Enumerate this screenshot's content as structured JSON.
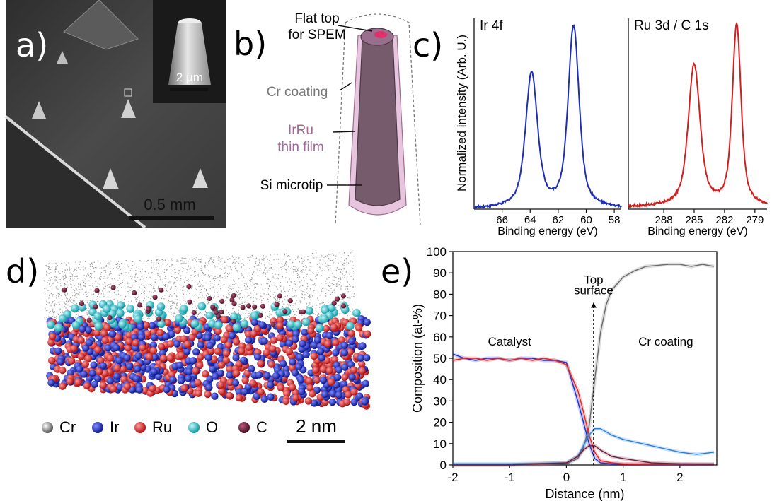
{
  "panels": {
    "a": {
      "letter": "a)",
      "scale_inset": "2 µm",
      "scale_main": "0.5 mm"
    },
    "b": {
      "letter": "b)",
      "labels": {
        "flat_top": "Flat top",
        "for_spem": "for SPEM",
        "cr_coating": "Cr coating",
        "irru": "IrRu",
        "thin_film": "thin film",
        "si_microtip": "Si microtip"
      },
      "colors": {
        "irru_label": "#a06b96",
        "tip_fill": "#765b6d",
        "film": "#e7c5de"
      }
    },
    "c": {
      "letter": "c)",
      "ylabel": "Normalized intensity (Arb. U.)",
      "colors": {
        "ir": "#1f2fb4",
        "ru": "#d21f1f"
      }
    },
    "d": {
      "letter": "d)",
      "scale": "2 nm",
      "legend": [
        {
          "label": "Cr",
          "color": "#777777"
        },
        {
          "label": "Ir",
          "color": "#1d2cc9"
        },
        {
          "label": "Ru",
          "color": "#e02525"
        },
        {
          "label": "O",
          "color": "#25c3cf"
        },
        {
          "label": "C",
          "color": "#6d1f3a"
        }
      ]
    },
    "e": {
      "letter": "e)"
    }
  },
  "chart_data": [
    {
      "type": "line",
      "title": "Ir 4f",
      "xlabel": "Binding energy (eV)",
      "ylabel": "Normalized intensity (Arb. U.)",
      "xlim": [
        68,
        57.5
      ],
      "ylim": [
        0,
        1.05
      ],
      "xticks": [
        "66",
        "64",
        "62",
        "60",
        "58"
      ],
      "xtick_values": [
        66,
        64,
        62,
        60,
        58
      ],
      "series": [
        {
          "color": "#1f2fb4",
          "peaks": [
            {
              "x": 63.9,
              "y": 0.74,
              "w": 0.55
            },
            {
              "x": 60.9,
              "y": 1.0,
              "w": 0.5
            }
          ],
          "baseline": 0.0
        }
      ]
    },
    {
      "type": "line",
      "title": "Ru 3d / C 1s",
      "xlabel": "Binding energy (eV)",
      "ylabel": "",
      "xlim": [
        291.5,
        277.8
      ],
      "ylim": [
        0,
        1.05
      ],
      "xticks": [
        "288",
        "285",
        "282",
        "279"
      ],
      "xtick_values": [
        288,
        285,
        282,
        279
      ],
      "series": [
        {
          "color": "#d21f1f",
          "peaks": [
            {
              "x": 285.0,
              "y": 0.78,
              "w": 0.75
            },
            {
              "x": 280.8,
              "y": 1.0,
              "w": 0.55
            }
          ],
          "baseline": 0.01
        }
      ]
    },
    {
      "type": "line",
      "xlabel": "Distance (nm)",
      "ylabel": "Composition (at-%)",
      "xlim": [
        -2,
        2.65
      ],
      "ylim": [
        0,
        100
      ],
      "xticks": [
        "-2",
        "-1",
        "0",
        "1",
        "2"
      ],
      "xtick_values": [
        -2,
        -1,
        0,
        1,
        2
      ],
      "yticks": [
        "0",
        "10",
        "20",
        "30",
        "40",
        "50",
        "60",
        "70",
        "80",
        "90",
        "100"
      ],
      "ytick_values": [
        0,
        10,
        20,
        30,
        40,
        50,
        60,
        70,
        80,
        90,
        100
      ],
      "annotations": [
        {
          "text": "Catalyst",
          "x": -1.0,
          "y": 56
        },
        {
          "text": "Cr coating",
          "x": 1.75,
          "y": 56
        },
        {
          "text": "Top",
          "x": 0.48,
          "y": 85
        },
        {
          "text": "surface",
          "x": 0.48,
          "y": 80
        }
      ],
      "top_surface_x": 0.48,
      "series": [
        {
          "color": "#6b6b6b",
          "x": [
            -2,
            -1.5,
            -1,
            -0.5,
            0,
            0.2,
            0.3,
            0.4,
            0.5,
            0.6,
            0.7,
            0.8,
            1.0,
            1.2,
            1.4,
            1.6,
            1.8,
            2.0,
            2.2,
            2.4,
            2.6
          ],
          "y": [
            0,
            0,
            0,
            0,
            0.5,
            3,
            8,
            18,
            40,
            62,
            75,
            82,
            88,
            91,
            93,
            93.5,
            94,
            94,
            93,
            94,
            93
          ]
        },
        {
          "color": "#1d2cc9",
          "x": [
            -2,
            -1.8,
            -1.6,
            -1.4,
            -1.2,
            -1.0,
            -0.8,
            -0.6,
            -0.4,
            -0.2,
            0,
            0.2,
            0.3,
            0.4,
            0.5,
            0.6,
            0.8,
            1.0,
            1.5,
            2.0,
            2.6
          ],
          "y": [
            52,
            50,
            49,
            50,
            50,
            49,
            50,
            50,
            49,
            49,
            48,
            30,
            20,
            10,
            3,
            1,
            0.5,
            0.3,
            0.2,
            0.2,
            0.2
          ]
        },
        {
          "color": "#e02525",
          "x": [
            -2,
            -1.8,
            -1.6,
            -1.4,
            -1.2,
            -1.0,
            -0.8,
            -0.6,
            -0.4,
            -0.2,
            0,
            0.2,
            0.3,
            0.4,
            0.5,
            0.6,
            0.8,
            1.0,
            1.5,
            2.0,
            2.6
          ],
          "y": [
            49,
            50,
            50,
            49,
            50,
            49,
            50,
            49,
            50,
            49,
            47,
            35,
            25,
            14,
            6,
            2,
            1,
            0.5,
            0.3,
            0.3,
            0.3
          ]
        },
        {
          "color": "#2a7fd8",
          "x": [
            -2,
            -1,
            0,
            0.2,
            0.3,
            0.4,
            0.5,
            0.6,
            0.8,
            1.0,
            1.5,
            2.0,
            2.3,
            2.6
          ],
          "y": [
            0.5,
            0.5,
            1,
            4,
            9,
            14,
            17,
            17,
            14,
            12,
            9,
            6,
            5,
            6
          ]
        },
        {
          "color": "#6d1f3a",
          "x": [
            -2,
            -1,
            0,
            0.2,
            0.3,
            0.4,
            0.5,
            0.6,
            0.8,
            1.0,
            1.5,
            2.0,
            2.6
          ],
          "y": [
            0,
            0,
            1,
            4,
            7,
            9,
            9,
            7,
            4,
            3,
            1,
            0.5,
            0.3
          ]
        }
      ]
    }
  ]
}
